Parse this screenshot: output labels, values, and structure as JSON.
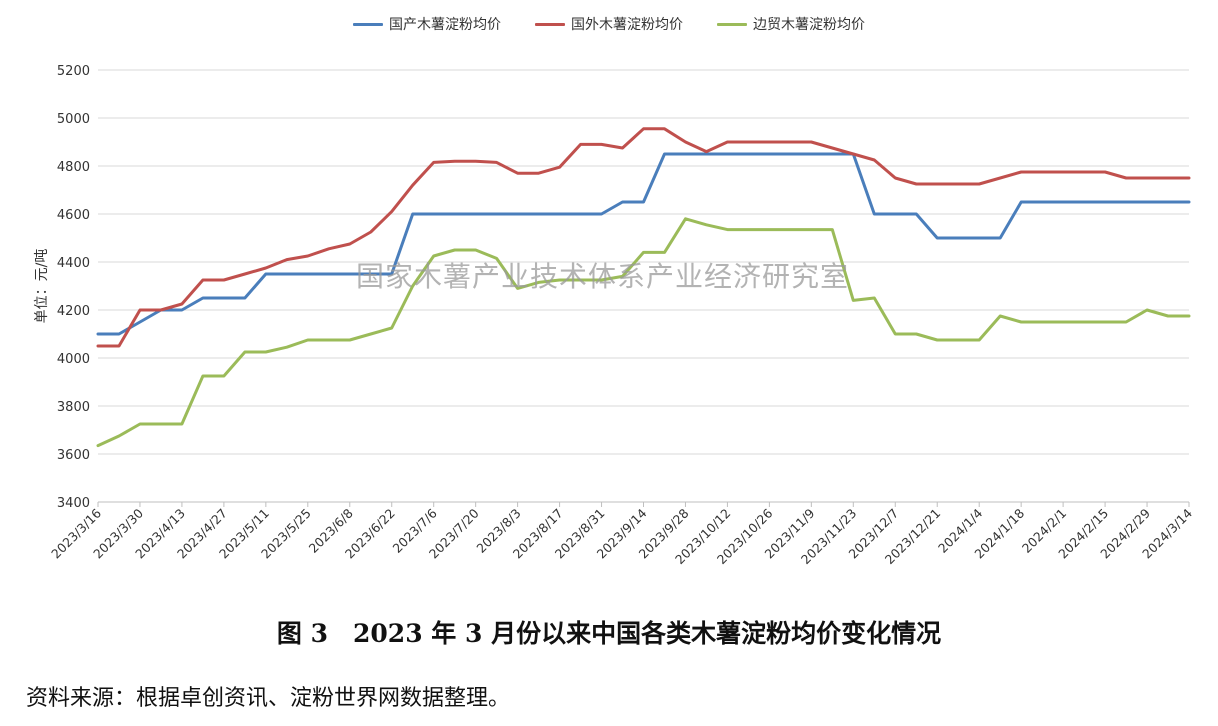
{
  "chart_data": {
    "type": "line",
    "ylabel": "单位：元/吨",
    "ylim": [
      3400,
      5200
    ],
    "y_ticks": [
      3400,
      3600,
      3800,
      4000,
      4200,
      4400,
      4600,
      4800,
      5000,
      5200
    ],
    "grid": true,
    "legend_position": "top-center",
    "x_tick_labels": [
      "2023/3/16",
      "2023/3/30",
      "2023/4/13",
      "2023/4/27",
      "2023/5/11",
      "2023/5/25",
      "2023/6/8",
      "2023/6/22",
      "2023/7/6",
      "2023/7/20",
      "2023/8/3",
      "2023/8/17",
      "2023/8/31",
      "2023/9/14",
      "2023/9/28",
      "2023/10/12",
      "2023/10/26",
      "2023/11/9",
      "2023/11/23",
      "2023/12/7",
      "2023/12/21",
      "2024/1/4",
      "2024/1/18",
      "2024/2/1",
      "2024/2/15",
      "2024/2/29",
      "2024/3/14"
    ],
    "x": [
      "2023/3/16",
      "2023/3/23",
      "2023/3/30",
      "2023/4/6",
      "2023/4/13",
      "2023/4/20",
      "2023/4/27",
      "2023/5/4",
      "2023/5/11",
      "2023/5/18",
      "2023/5/25",
      "2023/6/1",
      "2023/6/8",
      "2023/6/15",
      "2023/6/22",
      "2023/6/29",
      "2023/7/6",
      "2023/7/13",
      "2023/7/20",
      "2023/7/27",
      "2023/8/3",
      "2023/8/10",
      "2023/8/17",
      "2023/8/24",
      "2023/8/31",
      "2023/9/7",
      "2023/9/14",
      "2023/9/21",
      "2023/9/28",
      "2023/10/5",
      "2023/10/12",
      "2023/10/19",
      "2023/10/26",
      "2023/11/2",
      "2023/11/9",
      "2023/11/16",
      "2023/11/23",
      "2023/11/30",
      "2023/12/7",
      "2023/12/14",
      "2023/12/21",
      "2023/12/28",
      "2024/1/4",
      "2024/1/11",
      "2024/1/18",
      "2024/1/25",
      "2024/2/1",
      "2024/2/8",
      "2024/2/15",
      "2024/2/22",
      "2024/2/29",
      "2024/3/7",
      "2024/3/14"
    ],
    "series": [
      {
        "name": "国产木薯淀粉均价",
        "color": "#4a7ebb",
        "values": [
          4100,
          4100,
          4150,
          4200,
          4200,
          4250,
          4250,
          4250,
          4350,
          4350,
          4350,
          4350,
          4350,
          4350,
          4350,
          4600,
          4600,
          4600,
          4600,
          4600,
          4600,
          4600,
          4600,
          4600,
          4600,
          4650,
          4650,
          4850,
          4850,
          4850,
          4850,
          4850,
          4850,
          4850,
          4850,
          4850,
          4850,
          4600,
          4600,
          4600,
          4500,
          4500,
          4500,
          4500,
          4650,
          4650,
          4650,
          4650,
          4650,
          4650,
          4650,
          4650,
          4650
        ]
      },
      {
        "name": "国外木薯淀粉均价",
        "color": "#c0504d",
        "values": [
          4050,
          4050,
          4200,
          4200,
          4225,
          4325,
          4325,
          4350,
          4375,
          4410,
          4425,
          4455,
          4475,
          4525,
          4610,
          4720,
          4815,
          4820,
          4820,
          4815,
          4770,
          4770,
          4795,
          4890,
          4890,
          4875,
          4955,
          4955,
          4900,
          4860,
          4900,
          4900,
          4900,
          4900,
          4900,
          4875,
          4850,
          4825,
          4750,
          4725,
          4725,
          4725,
          4725,
          4750,
          4775,
          4775,
          4775,
          4775,
          4775,
          4750,
          4750,
          4750,
          4750
        ]
      },
      {
        "name": "边贸木薯淀粉均价",
        "color": "#9bbb59",
        "values": [
          3635,
          3675,
          3725,
          3725,
          3725,
          3925,
          3925,
          4025,
          4025,
          4045,
          4075,
          4075,
          4075,
          4100,
          4125,
          4300,
          4425,
          4450,
          4450,
          4415,
          4290,
          4315,
          4325,
          4325,
          4325,
          4340,
          4440,
          4440,
          4580,
          4555,
          4535,
          4535,
          4535,
          4535,
          4535,
          4535,
          4240,
          4250,
          4100,
          4100,
          4075,
          4075,
          4075,
          4175,
          4150,
          4150,
          4150,
          4150,
          4150,
          4150,
          4200,
          4175,
          4175
        ]
      }
    ]
  },
  "watermark": "国家木薯产业技术体系产业经济研究室",
  "caption": "图 3　2023 年 3 月份以来中国各类木薯淀粉均价变化情况",
  "source": "资料来源：根据卓创资讯、淀粉世界网数据整理。"
}
